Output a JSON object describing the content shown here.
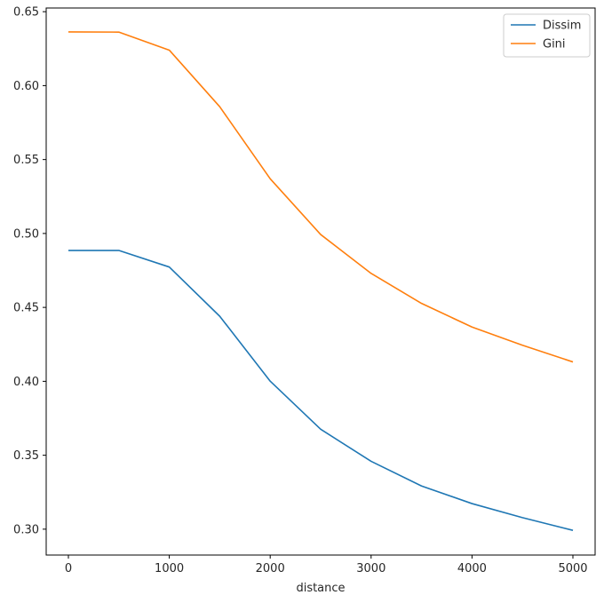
{
  "chart_data": {
    "type": "line",
    "title": "",
    "xlabel": "distance",
    "ylabel": "",
    "x": [
      0,
      500,
      1000,
      1500,
      2000,
      2500,
      3000,
      3500,
      4000,
      4500,
      5000
    ],
    "series": [
      {
        "name": "Dissim",
        "color": "#1f77b4",
        "values": [
          0.4885,
          0.4885,
          0.4773,
          0.444,
          0.4001,
          0.3676,
          0.3459,
          0.3292,
          0.3173,
          0.3078,
          0.2992
        ]
      },
      {
        "name": "Gini",
        "color": "#ff7f0e",
        "values": [
          0.6363,
          0.6362,
          0.624,
          0.5857,
          0.537,
          0.4993,
          0.473,
          0.4527,
          0.4367,
          0.4244,
          0.4131
        ]
      }
    ],
    "xlim": [
      -220,
      5220
    ],
    "ylim": [
      0.2825,
      0.6525
    ],
    "xticks": [
      0,
      1000,
      2000,
      3000,
      4000,
      5000
    ],
    "xtick_labels": [
      "0",
      "1000",
      "2000",
      "3000",
      "4000",
      "5000"
    ],
    "yticks": [
      0.3,
      0.35,
      0.4,
      0.45,
      0.5,
      0.55,
      0.6,
      0.65
    ],
    "ytick_labels": [
      "0.30",
      "0.35",
      "0.40",
      "0.45",
      "0.50",
      "0.55",
      "0.60",
      "0.65"
    ],
    "grid": false,
    "legend_position": "top-right"
  }
}
